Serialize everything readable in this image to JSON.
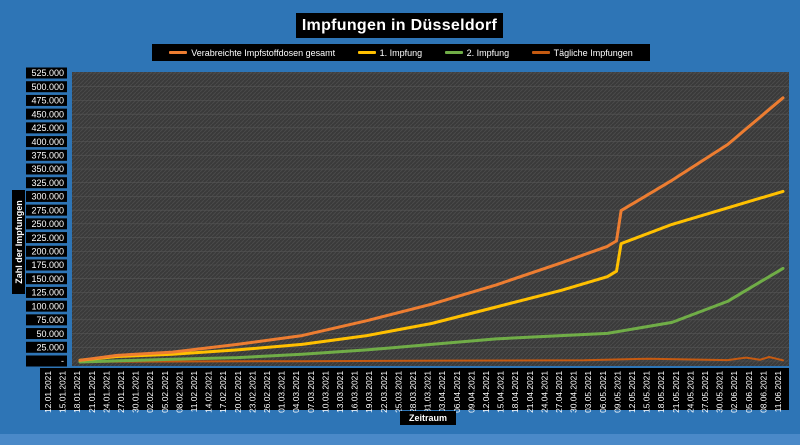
{
  "chart_data": {
    "type": "line",
    "title": "Impfungen in Düsseldorf",
    "xlabel": "Zeitraum",
    "ylabel": "Zahl der Impfungen",
    "ylim": [
      0,
      525000
    ],
    "yticks": [
      "-",
      "25.000",
      "50.000",
      "75.000",
      "100.000",
      "125.000",
      "150.000",
      "175.000",
      "200.000",
      "225.000",
      "250.000",
      "275.000",
      "300.000",
      "325.000",
      "350.000",
      "375.000",
      "400.000",
      "425.000",
      "450.000",
      "475.000",
      "500.000",
      "525.000"
    ],
    "x_start": "2021-01-12",
    "x_end": "2021-06-13",
    "xticks": [
      "12.01.2021",
      "15.01.2021",
      "18.01.2021",
      "21.01.2021",
      "24.01.2021",
      "27.01.2021",
      "30.01.2021",
      "02.02.2021",
      "05.02.2021",
      "08.02.2021",
      "11.02.2021",
      "14.02.2021",
      "17.02.2021",
      "20.02.2021",
      "23.02.2021",
      "26.02.2021",
      "01.03.2021",
      "04.03.2021",
      "07.03.2021",
      "10.03.2021",
      "13.03.2021",
      "16.03.2021",
      "19.03.2021",
      "22.03.2021",
      "25.03.2021",
      "28.03.2021",
      "31.03.2021",
      "03.04.2021",
      "06.04.2021",
      "09.04.2021",
      "12.04.2021",
      "15.04.2021",
      "18.04.2021",
      "21.04.2021",
      "24.04.2021",
      "27.04.2021",
      "30.04.2021",
      "03.05.2021",
      "06.05.2021",
      "09.05.2021",
      "12.05.2021",
      "15.05.2021",
      "18.05.2021",
      "21.05.2021",
      "24.05.2021",
      "27.05.2021",
      "30.05.2021",
      "02.06.2021",
      "05.06.2021",
      "08.06.2021",
      "11.06.2021"
    ],
    "legend_position": "top",
    "grid": true,
    "series": [
      {
        "name": "Verabreichte Impfstoffdosen gesamt",
        "color": "#ed7d31",
        "x": [
          "2021-01-12",
          "2021-01-20",
          "2021-02-01",
          "2021-02-15",
          "2021-03-01",
          "2021-03-15",
          "2021-03-29",
          "2021-04-12",
          "2021-04-26",
          "2021-05-06",
          "2021-05-08",
          "2021-05-09",
          "2021-05-20",
          "2021-06-01",
          "2021-06-13"
        ],
        "y": [
          3000,
          12000,
          18000,
          32000,
          48000,
          75000,
          105000,
          140000,
          180000,
          210000,
          220000,
          275000,
          330000,
          395000,
          480000
        ]
      },
      {
        "name": "1. Impfung",
        "color": "#ffc000",
        "x": [
          "2021-01-12",
          "2021-01-20",
          "2021-02-01",
          "2021-02-15",
          "2021-03-01",
          "2021-03-15",
          "2021-03-29",
          "2021-04-12",
          "2021-04-26",
          "2021-05-06",
          "2021-05-08",
          "2021-05-09",
          "2021-05-20",
          "2021-06-01",
          "2021-06-13"
        ],
        "y": [
          3000,
          10000,
          14000,
          22000,
          32000,
          48000,
          70000,
          100000,
          130000,
          155000,
          165000,
          215000,
          250000,
          280000,
          310000
        ]
      },
      {
        "name": "2. Impfung",
        "color": "#70ad47",
        "x": [
          "2021-01-12",
          "2021-02-01",
          "2021-02-15",
          "2021-03-01",
          "2021-03-15",
          "2021-03-29",
          "2021-04-12",
          "2021-04-26",
          "2021-05-06",
          "2021-05-20",
          "2021-06-01",
          "2021-06-13"
        ],
        "y": [
          0,
          5000,
          8000,
          14000,
          22000,
          32000,
          42000,
          48000,
          52000,
          72000,
          110000,
          170000
        ]
      },
      {
        "name": "Tägliche Impfungen",
        "color": "#c55a11",
        "x": [
          "2021-01-12",
          "2021-03-01",
          "2021-04-01",
          "2021-05-01",
          "2021-05-15",
          "2021-06-01",
          "2021-06-05",
          "2021-06-08",
          "2021-06-10",
          "2021-06-13"
        ],
        "y": [
          500,
          1500,
          2500,
          3000,
          6000,
          3500,
          8000,
          4000,
          9000,
          3000
        ]
      }
    ]
  }
}
